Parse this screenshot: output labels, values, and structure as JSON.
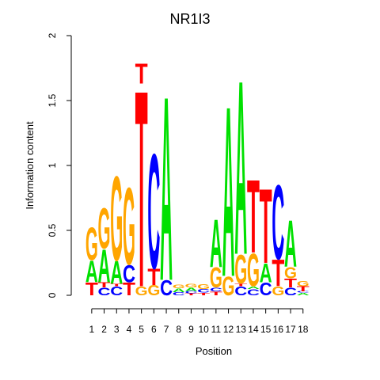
{
  "chart_data": {
    "type": "sequence_logo",
    "title": "NR1I3",
    "xlabel": "Position",
    "ylabel": "Information content",
    "ylim": [
      0,
      2
    ],
    "y_ticks": [
      "0",
      "0.5",
      "1",
      "1.5",
      "2"
    ],
    "x_ticks": [
      "1",
      "2",
      "3",
      "4",
      "5",
      "6",
      "7",
      "8",
      "9",
      "10",
      "11",
      "12",
      "13",
      "14",
      "15",
      "16",
      "17",
      "18"
    ],
    "colors": {
      "A": "#00e000",
      "C": "#0000ff",
      "G": "#ffa500",
      "T": "#ff0000"
    },
    "positions": [
      [
        {
          "b": "T",
          "h": 0.1
        },
        {
          "b": "A",
          "h": 0.17
        },
        {
          "b": "G",
          "h": 0.26
        }
      ],
      [
        {
          "b": "C",
          "h": 0.06
        },
        {
          "b": "T",
          "h": 0.04
        },
        {
          "b": "A",
          "h": 0.26
        },
        {
          "b": "G",
          "h": 0.32
        }
      ],
      [
        {
          "b": "C",
          "h": 0.07
        },
        {
          "b": "T",
          "h": 0.02
        },
        {
          "b": "A",
          "h": 0.18
        },
        {
          "b": "G",
          "h": 0.67
        }
      ],
      [
        {
          "b": "T",
          "h": 0.1
        },
        {
          "b": "C",
          "h": 0.14
        },
        {
          "b": "G",
          "h": 0.61
        }
      ],
      [
        {
          "b": "G",
          "h": 0.07
        },
        {
          "b": "T",
          "h": 1.56
        },
        {
          "b": "T",
          "h": 0.16
        }
      ],
      [
        {
          "b": "G",
          "h": 0.08
        },
        {
          "b": "T",
          "h": 0.13
        },
        {
          "b": "C",
          "h": 0.91
        }
      ],
      [
        {
          "b": "C",
          "h": 0.12
        },
        {
          "b": "A",
          "h": 1.46
        }
      ],
      [
        {
          "b": "C",
          "h": 0.025
        },
        {
          "b": "A",
          "h": 0.03
        },
        {
          "b": "G",
          "h": 0.03
        }
      ],
      [
        {
          "b": "T",
          "h": 0.015
        },
        {
          "b": "C",
          "h": 0.02
        },
        {
          "b": "A",
          "h": 0.025
        },
        {
          "b": "G",
          "h": 0.03
        }
      ],
      [
        {
          "b": "T",
          "h": 0.02
        },
        {
          "b": "C",
          "h": 0.03
        },
        {
          "b": "G",
          "h": 0.035
        }
      ],
      [
        {
          "b": "T",
          "h": 0.03
        },
        {
          "b": "C",
          "h": 0.03
        },
        {
          "b": "G",
          "h": 0.16
        },
        {
          "b": "A",
          "h": 0.38
        }
      ],
      [
        {
          "b": "G",
          "h": 0.15
        },
        {
          "b": "A",
          "h": 1.35
        }
      ],
      [
        {
          "b": "C",
          "h": 0.07
        },
        {
          "b": "T",
          "h": 0.02
        },
        {
          "b": "G",
          "h": 0.23
        },
        {
          "b": "A",
          "h": 1.38
        }
      ],
      [
        {
          "b": "C",
          "h": 0.05
        },
        {
          "b": "A",
          "h": 0.02
        },
        {
          "b": "G",
          "h": 0.26
        },
        {
          "b": "T",
          "h": 0.58
        }
      ],
      [
        {
          "b": "C",
          "h": 0.1
        },
        {
          "b": "A",
          "h": 0.15
        },
        {
          "b": "T",
          "h": 0.59
        }
      ],
      [
        {
          "b": "G",
          "h": 0.07
        },
        {
          "b": "T",
          "h": 0.21
        },
        {
          "b": "C",
          "h": 0.59
        }
      ],
      [
        {
          "b": "C",
          "h": 0.06
        },
        {
          "b": "T",
          "h": 0.07
        },
        {
          "b": "G",
          "h": 0.09
        },
        {
          "b": "A",
          "h": 0.37
        }
      ],
      [
        {
          "b": "A",
          "h": 0.02
        },
        {
          "b": "C",
          "h": 0.01
        },
        {
          "b": "T",
          "h": 0.04
        },
        {
          "b": "G",
          "h": 0.04
        }
      ]
    ]
  }
}
